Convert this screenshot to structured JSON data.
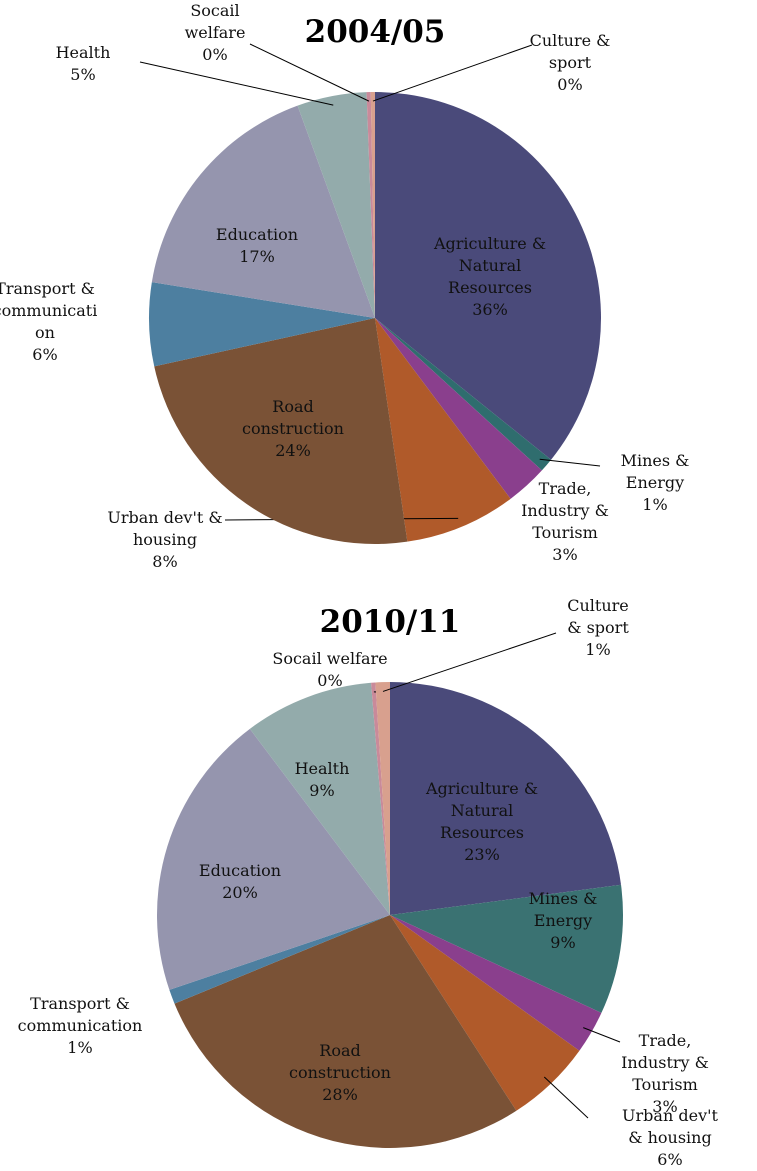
{
  "chart_data": [
    {
      "type": "pie",
      "title": "2004/05",
      "categories": [
        "Agriculture & Natural Resources",
        "Mines & Energy",
        "Trade, Industry & Tourism",
        "Urban dev't & housing",
        "Road construction",
        "Transport & communication",
        "Education",
        "Health",
        "Socail welfare",
        "Culture & sport"
      ],
      "values": [
        36,
        1,
        3,
        8,
        24,
        6,
        17,
        5,
        0.3,
        0.3
      ],
      "value_labels": [
        "36%",
        "1%",
        "3%",
        "8%",
        "24%",
        "6%",
        "17%",
        "5%",
        "0%",
        "0%"
      ],
      "colors": [
        "#4a4a7a",
        "#2f6d6e",
        "#8a3f8d",
        "#b05a2a",
        "#7a5236",
        "#4d7fa0",
        "#9595ae",
        "#93abab",
        "#c98a9a",
        "#d8a08e"
      ]
    },
    {
      "type": "pie",
      "title": "2010/11",
      "categories": [
        "Agriculture & Natural Resources",
        "Mines & Energy",
        "Trade, Industry & Tourism",
        "Urban dev't & housing",
        "Road construction",
        "Transport & communication",
        "Education",
        "Health",
        "Socail welfare",
        "Culture & sport"
      ],
      "values": [
        23,
        9,
        3,
        6,
        28,
        1,
        20,
        9,
        0.3,
        1
      ],
      "value_labels": [
        "23%",
        "9%",
        "3%",
        "6%",
        "28%",
        "1%",
        "20%",
        "9%",
        "0%",
        "1%"
      ],
      "colors": [
        "#4a4a7a",
        "#3a7272",
        "#8a3f8d",
        "#b05a2a",
        "#7a5236",
        "#4d7fa0",
        "#9595ae",
        "#93abab",
        "#c98a9a",
        "#d8a08e"
      ]
    }
  ]
}
